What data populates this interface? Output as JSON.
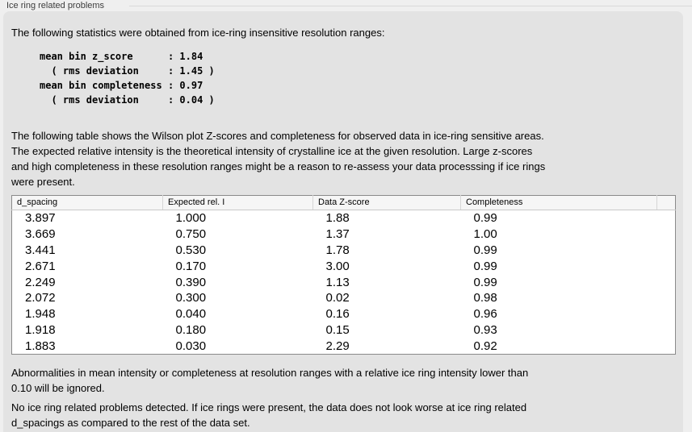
{
  "window": {
    "title": "Ice ring related problems"
  },
  "panel": {
    "intro": "The following statistics were obtained from ice-ring insensitive resolution ranges:",
    "stats_block": "mean bin z_score      : 1.84\n  ( rms deviation     : 1.45 )\nmean bin completeness : 0.97\n  ( rms deviation     : 0.04 )",
    "table_description": "The following table shows the Wilson plot Z-scores and completeness for observed data in ice-ring sensitive areas.\nThe expected relative intensity is the theoretical intensity of crystalline ice at the given resolution. Large z-scores\nand high completeness in these resolution ranges might be a reason to re-assess your data processsing if ice rings\nwere present.",
    "ignore_note": "Abnormalities in mean intensity or completeness at resolution ranges with a relative ice ring intensity lower than\n0.10 will be ignored.",
    "conclusion": "No ice ring related problems detected. If ice rings were present, the data does not look worse at ice ring related\nd_spacings as compared to the rest of the data set."
  },
  "table": {
    "columns": [
      "d_spacing",
      "Expected rel. I",
      "Data Z-score",
      "Completeness",
      ""
    ],
    "rows": [
      [
        "3.897",
        "1.000",
        "1.88",
        "0.99"
      ],
      [
        "3.669",
        "0.750",
        "1.37",
        "1.00"
      ],
      [
        "3.441",
        "0.530",
        "1.78",
        "0.99"
      ],
      [
        "2.671",
        "0.170",
        "3.00",
        "0.99"
      ],
      [
        "2.249",
        "0.390",
        "1.13",
        "0.99"
      ],
      [
        "2.072",
        "0.300",
        "0.02",
        "0.98"
      ],
      [
        "1.948",
        "0.040",
        "0.16",
        "0.96"
      ],
      [
        "1.918",
        "0.180",
        "0.15",
        "0.93"
      ],
      [
        "1.883",
        "0.030",
        "2.29",
        "0.92"
      ]
    ]
  },
  "colors": {
    "window_bg": "#efefef",
    "panel_bg": "#e3e3e3",
    "table_bg": "#ffffff",
    "table_border": "#8a8a8a",
    "header_bg": "#f6f6f6",
    "header_separator": "#d6d6d6",
    "label_text": "#3d3d3d"
  }
}
